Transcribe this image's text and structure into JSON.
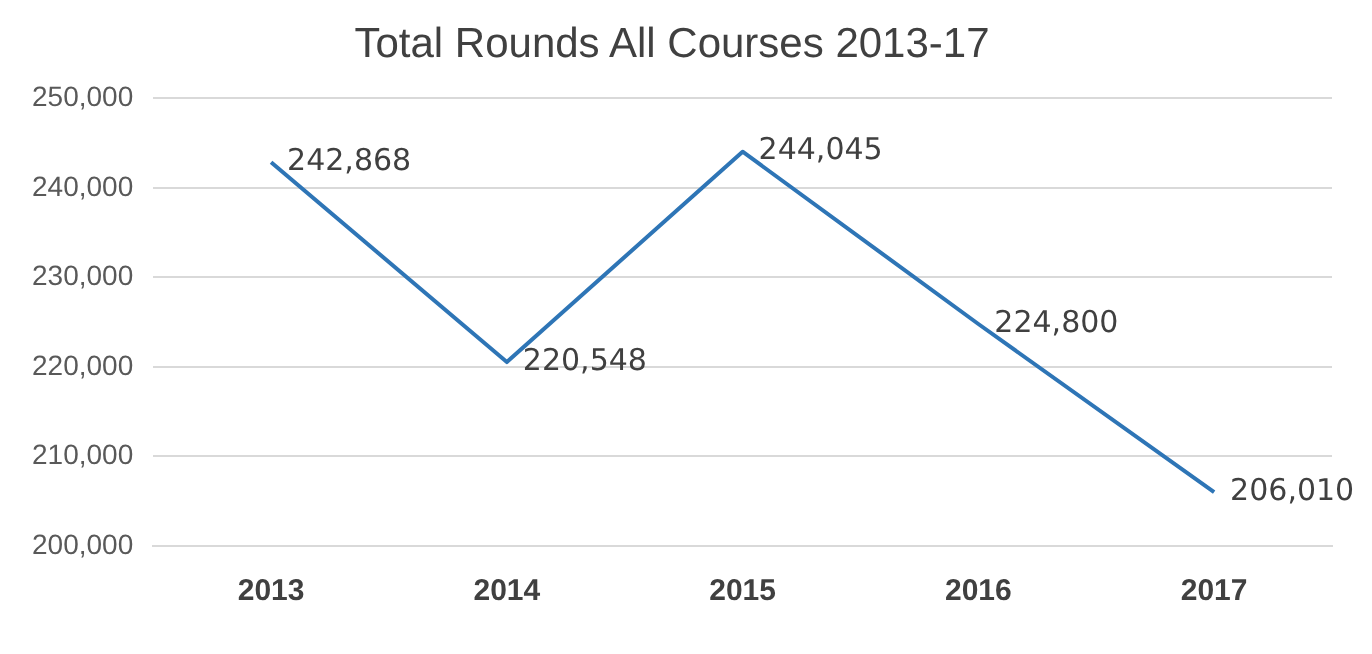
{
  "chart_data": {
    "type": "line",
    "title": "Total Rounds All Courses 2013-17",
    "categories": [
      "2013",
      "2014",
      "2015",
      "2016",
      "2017"
    ],
    "series": [
      {
        "color": "#2e75b6",
        "values": [
          242868,
          220548,
          244045,
          224800,
          206010
        ],
        "value_labels": [
          "242,868",
          "220,548",
          "244,045",
          "224,800",
          "206,010"
        ]
      }
    ],
    "ylim": [
      200000,
      250000
    ],
    "yticks": [
      {
        "value": 200000,
        "label": "200,000"
      },
      {
        "value": 210000,
        "label": "210,000"
      },
      {
        "value": 220000,
        "label": "220,000"
      },
      {
        "value": 230000,
        "label": "230,000"
      },
      {
        "value": 240000,
        "label": "240,000"
      },
      {
        "value": 250000,
        "label": "250,000"
      }
    ],
    "grid": "y",
    "legend": false,
    "marker": "none",
    "line_style": "solid"
  }
}
